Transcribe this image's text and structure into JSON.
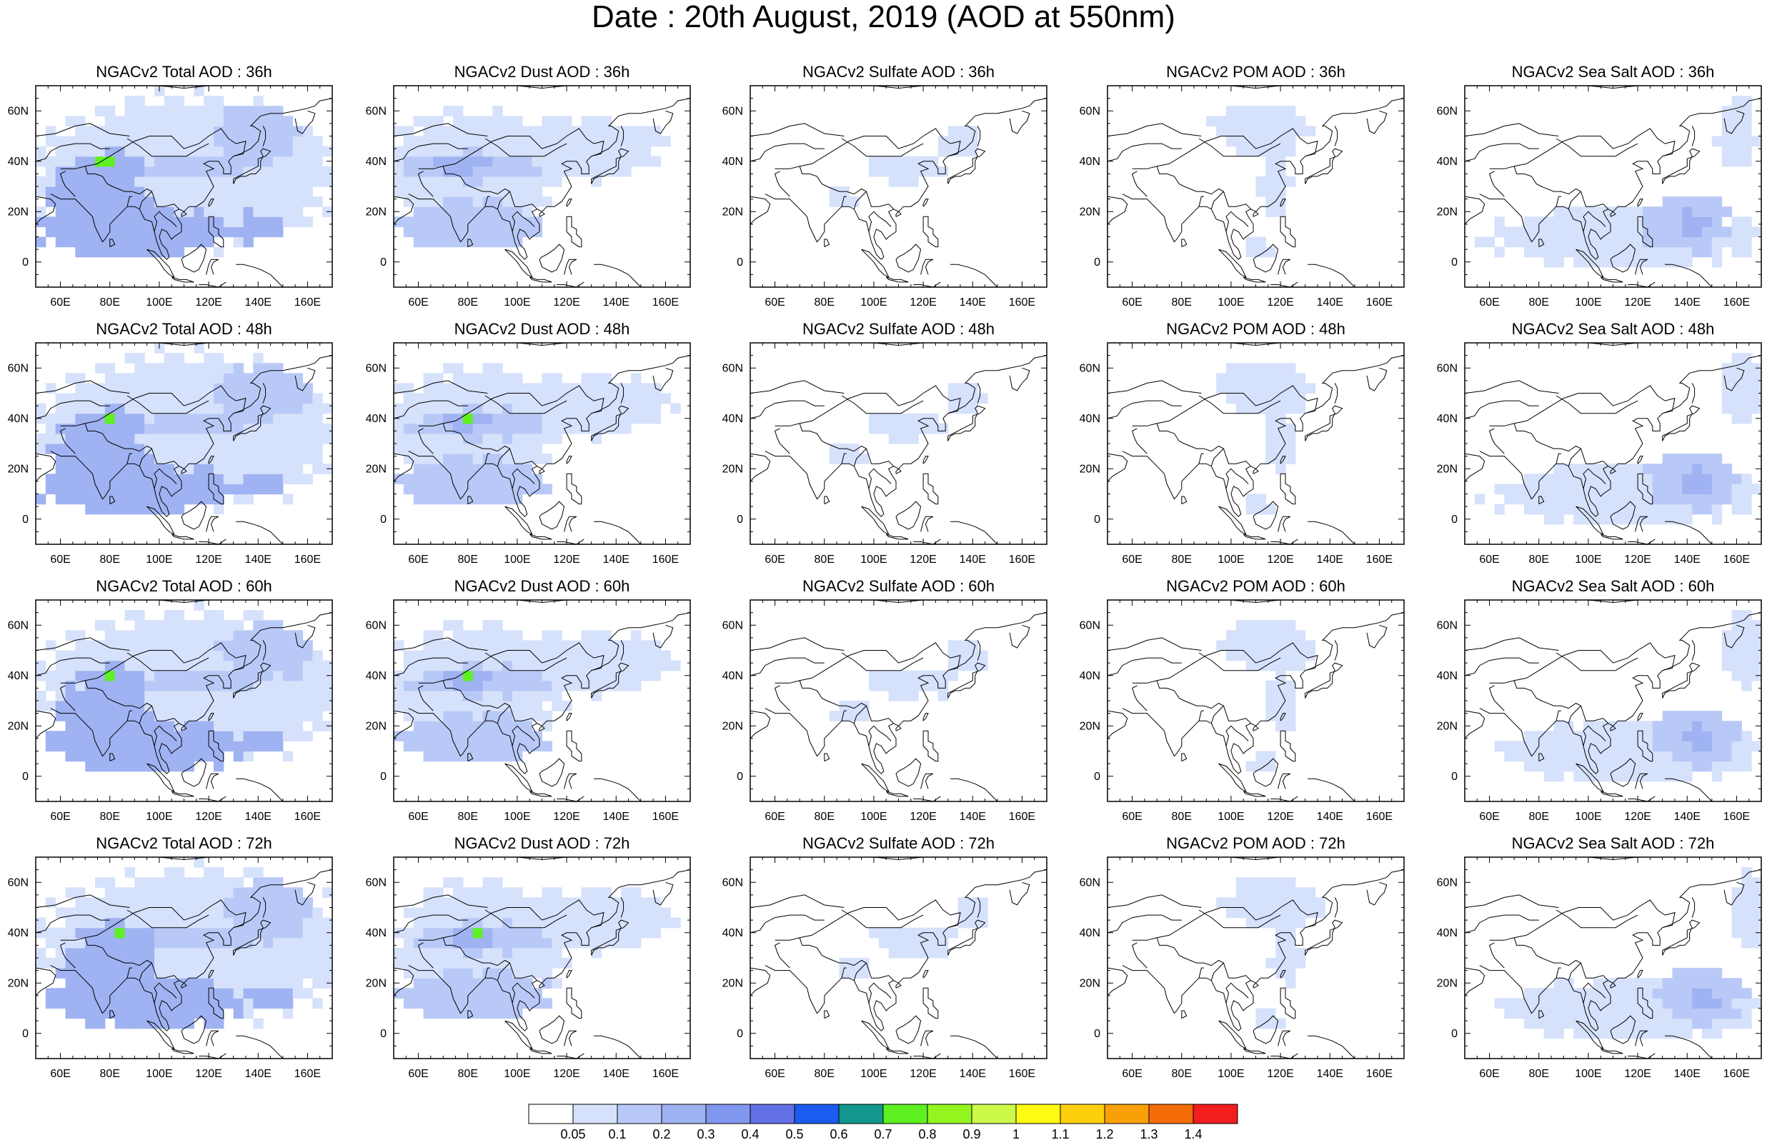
{
  "figure": {
    "title": "Date : 20th August, 2019 (AOD at 550nm)"
  },
  "map_axes": {
    "lon_ticks": [
      "60E",
      "80E",
      "100E",
      "120E",
      "140E",
      "160E"
    ],
    "lon_values": [
      60,
      80,
      100,
      120,
      140,
      160
    ],
    "lat_ticks": [
      "60N",
      "40N",
      "20N",
      "0"
    ],
    "lat_values": [
      60,
      40,
      20,
      0
    ],
    "lon_range": [
      50,
      170
    ],
    "lat_range": [
      -10,
      70
    ]
  },
  "panels": [
    {
      "title": "NGACv2 Total AOD : 36h",
      "species": "total",
      "hour": 36
    },
    {
      "title": "NGACv2 Dust AOD : 36h",
      "species": "dust",
      "hour": 36
    },
    {
      "title": "NGACv2 Sulfate AOD : 36h",
      "species": "sulfate",
      "hour": 36
    },
    {
      "title": "NGACv2 POM AOD : 36h",
      "species": "pom",
      "hour": 36
    },
    {
      "title": "NGACv2 Sea Salt AOD : 36h",
      "species": "seasalt",
      "hour": 36
    },
    {
      "title": "NGACv2 Total AOD : 48h",
      "species": "total",
      "hour": 48
    },
    {
      "title": "NGACv2 Dust AOD : 48h",
      "species": "dust",
      "hour": 48
    },
    {
      "title": "NGACv2 Sulfate AOD : 48h",
      "species": "sulfate",
      "hour": 48
    },
    {
      "title": "NGACv2 POM AOD : 48h",
      "species": "pom",
      "hour": 48
    },
    {
      "title": "NGACv2 Sea Salt AOD : 48h",
      "species": "seasalt",
      "hour": 48
    },
    {
      "title": "NGACv2 Total AOD : 60h",
      "species": "total",
      "hour": 60
    },
    {
      "title": "NGACv2 Dust AOD : 60h",
      "species": "dust",
      "hour": 60
    },
    {
      "title": "NGACv2 Sulfate AOD : 60h",
      "species": "sulfate",
      "hour": 60
    },
    {
      "title": "NGACv2 POM AOD : 60h",
      "species": "pom",
      "hour": 60
    },
    {
      "title": "NGACv2 Sea Salt AOD : 60h",
      "species": "seasalt",
      "hour": 60
    },
    {
      "title": "NGACv2 Total AOD : 72h",
      "species": "total",
      "hour": 72
    },
    {
      "title": "NGACv2 Dust AOD : 72h",
      "species": "dust",
      "hour": 72
    },
    {
      "title": "NGACv2 Sulfate AOD : 72h",
      "species": "sulfate",
      "hour": 72
    },
    {
      "title": "NGACv2 POM AOD : 72h",
      "species": "pom",
      "hour": 72
    },
    {
      "title": "NGACv2 Sea Salt  AOD : 72h",
      "species": "seasalt",
      "hour": 72
    }
  ],
  "colorbar": {
    "labels": [
      "0.05",
      "0.1",
      "0.2",
      "0.3",
      "0.4",
      "0.5",
      "0.6",
      "0.7",
      "0.8",
      "0.9",
      "1",
      "1.1",
      "1.2",
      "1.3",
      "1.4"
    ],
    "colors": [
      "#ffffff",
      "#d6e1fb",
      "#b9c9f7",
      "#9fb2f2",
      "#8196ef",
      "#6370e6",
      "#1a5cf0",
      "#12978d",
      "#5ef021",
      "#93f51e",
      "#ccf84a",
      "#fffb12",
      "#fdcf0c",
      "#f9a008",
      "#f46c07",
      "#f21d1d"
    ]
  },
  "land_outline_color": "#000000",
  "aerosol_blobs": {
    "total": [
      {
        "lon": 110,
        "lat": 35,
        "rlon": 62,
        "rlat": 30,
        "level": 1
      },
      {
        "lon": 90,
        "lat": 12,
        "rlon": 40,
        "rlat": 10,
        "level": 3
      },
      {
        "lon": 75,
        "lat": 25,
        "rlon": 20,
        "rlat": 15,
        "level": 3
      },
      {
        "lon": 78,
        "lat": 39,
        "rlon": 16,
        "rlat": 5,
        "level": 3
      },
      {
        "lon": 78,
        "lat": 39,
        "rlon": 3,
        "rlat": 2,
        "level": 8
      },
      {
        "lon": 140,
        "lat": 14,
        "rlon": 10,
        "rlat": 6,
        "level": 3
      },
      {
        "lon": 115,
        "lat": 38,
        "rlon": 25,
        "rlat": 4,
        "level": 2
      },
      {
        "lon": 140,
        "lat": 50,
        "rlon": 18,
        "rlat": 12,
        "level": 2
      }
    ],
    "dust": [
      {
        "lon": 80,
        "lat": 35,
        "rlon": 35,
        "rlat": 25,
        "level": 1
      },
      {
        "lon": 82,
        "lat": 38,
        "rlon": 28,
        "rlat": 6,
        "level": 2
      },
      {
        "lon": 78,
        "lat": 39,
        "rlon": 10,
        "rlat": 4,
        "level": 3
      },
      {
        "lon": 78,
        "lat": 39,
        "rlon": 2,
        "rlat": 2,
        "level": 8
      },
      {
        "lon": 80,
        "lat": 15,
        "rlon": 30,
        "rlat": 10,
        "level": 2
      },
      {
        "lon": 125,
        "lat": 45,
        "rlon": 35,
        "rlat": 12,
        "level": 1
      }
    ],
    "sulfate": [
      {
        "lon": 112,
        "lat": 37,
        "rlon": 18,
        "rlat": 6,
        "level": 1
      },
      {
        "lon": 88,
        "lat": 25,
        "rlon": 8,
        "rlat": 4,
        "level": 1
      },
      {
        "lon": 135,
        "lat": 48,
        "rlon": 8,
        "rlat": 6,
        "level": 1
      }
    ],
    "pom": [
      {
        "lon": 112,
        "lat": 52,
        "rlon": 20,
        "rlat": 10,
        "level": 1
      },
      {
        "lon": 118,
        "lat": 30,
        "rlon": 6,
        "rlat": 12,
        "level": 1
      },
      {
        "lon": 110,
        "lat": 5,
        "rlon": 6,
        "rlat": 4,
        "level": 1
      }
    ],
    "seasalt": [
      {
        "lon": 115,
        "lat": 10,
        "rlon": 55,
        "rlat": 12,
        "level": 1
      },
      {
        "lon": 140,
        "lat": 15,
        "rlon": 18,
        "rlat": 11,
        "level": 2
      },
      {
        "lon": 142,
        "lat": 15,
        "rlon": 6,
        "rlat": 5,
        "level": 3
      },
      {
        "lon": 160,
        "lat": 50,
        "rlon": 8,
        "rlat": 15,
        "level": 1
      }
    ]
  }
}
